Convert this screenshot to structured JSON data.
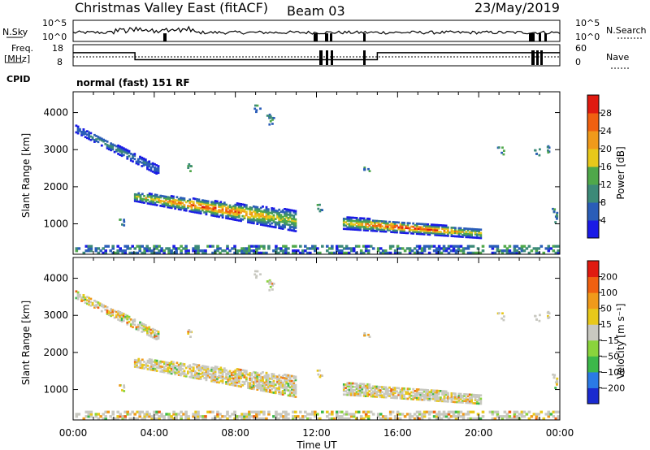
{
  "header": {
    "title": "Christmas Valley East (fitACF)",
    "beam": "Beam 03",
    "date": "23/May/2019"
  },
  "status_panels": {
    "nsky_label": "N.Sky",
    "nsky_ticks": [
      "10^5",
      "10^0"
    ],
    "nsearch_label": "N.Search",
    "nsearch_ticks": [
      "10^5",
      "10^0"
    ],
    "freq_label": "Freq.",
    "freq_unit": "[MHz]",
    "freq_ticks": [
      "18",
      "8"
    ],
    "nave_label": "Nave",
    "nave_ticks": [
      "60",
      "0"
    ],
    "cpid_label": "CPID",
    "cpid_text": "normal (fast) 151 RF",
    "freq_data": {
      "x_hours": [
        0,
        3.05,
        3.05,
        15,
        15,
        24
      ],
      "mhz": [
        14.2,
        14.2,
        10.9,
        10.9,
        14.2,
        14.2
      ]
    }
  },
  "chart_data": [
    {
      "type": "heatmap",
      "name": "power",
      "ylabel": "Slant Range [km]",
      "xlim": [
        0,
        24
      ],
      "ylim": [
        180,
        4560
      ],
      "yticks": [
        1000,
        2000,
        3000,
        4000
      ],
      "colorbar": {
        "label": "Power [dB]",
        "range": [
          0,
          32
        ],
        "ticks": [
          "4",
          "8",
          "12",
          "16",
          "20",
          "24",
          "28"
        ],
        "colors": [
          "#1a1ae6",
          "#2a5db8",
          "#3c8a78",
          "#4fa84a",
          "#e8c81a",
          "#f09a1a",
          "#f06010",
          "#e01a10"
        ]
      },
      "regions": [
        {
          "desc": "scatter lobe 04-11 UT",
          "t0": 3.0,
          "t1": 11.0,
          "r_top": [
            1850,
            1350
          ],
          "r_bot": [
            1600,
            780
          ],
          "peak_dB": 28
        },
        {
          "desc": "scatter lobe 13.5-20 UT",
          "t0": 13.3,
          "t1": 20.1,
          "r_top": [
            1180,
            850
          ],
          "r_bot": [
            850,
            600
          ],
          "peak_dB": 30
        },
        {
          "desc": "far range band 00-04 UT",
          "t0": 0.1,
          "t1": 4.2,
          "r_top": [
            3650,
            2550
          ],
          "r_bot": [
            3450,
            2300
          ],
          "peak_dB": 10
        }
      ]
    },
    {
      "type": "heatmap",
      "name": "velocity",
      "ylabel": "Slant Range [km]",
      "xlabel": "Time UT",
      "xlim": [
        0,
        24
      ],
      "ylim": [
        180,
        4560
      ],
      "xticks": [
        "00:00",
        "04:00",
        "08:00",
        "12:00",
        "16:00",
        "20:00",
        "00:00"
      ],
      "yticks": [
        1000,
        2000,
        3000,
        4000
      ],
      "colorbar": {
        "label": "Velocity [m s⁻¹]",
        "ticks": [
          "200",
          "100",
          "50",
          "15",
          "−15",
          "−50",
          "−100",
          "−200"
        ],
        "colors": [
          "#1a2ad0",
          "#2a7ae6",
          "#3cb84a",
          "#8ad43c",
          "#c8c8c0",
          "#e8c81a",
          "#f09a1a",
          "#f06010",
          "#e01a10"
        ]
      },
      "dominant_velocity_m_s": [
        -15,
        15
      ]
    }
  ]
}
